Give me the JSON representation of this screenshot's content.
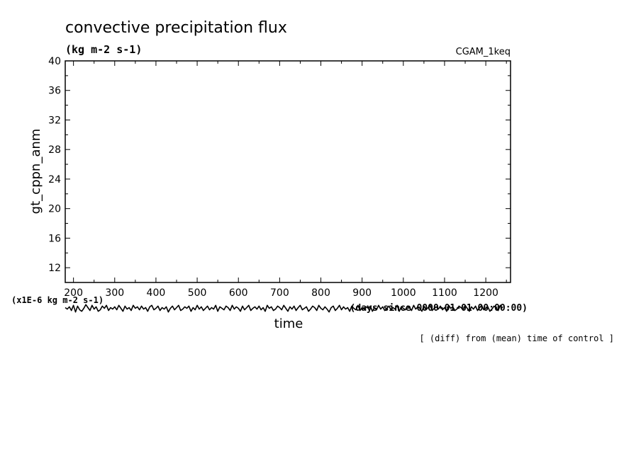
{
  "chart_data": {
    "type": "line",
    "title": "convective precipitation flux",
    "units": "(kg m-2 s-1)",
    "run_label": "CGAM_1keq",
    "ylabel": "gt_cppn_anm",
    "y_scale_note": "(x1E-6 kg m-2 s-1)",
    "xlabel": "time",
    "x_units": "(days since 0000-01-01 00:00:00)",
    "annotation": "[ (diff) from (mean) time of control ]",
    "xlim": [
      180,
      1260
    ],
    "ylim": [
      10,
      40
    ],
    "x_ticks": [
      200,
      300,
      400,
      500,
      600,
      700,
      800,
      900,
      1000,
      1100,
      1200
    ],
    "y_ticks": [
      12,
      16,
      20,
      24,
      28,
      32,
      36,
      40
    ],
    "series": [
      {
        "x_start": 180,
        "x_step": 5,
        "values": [
          6.6,
          6.4,
          6.7,
          6.2,
          6.9,
          6.0,
          6.8,
          6.3,
          6.1,
          6.5,
          7.0,
          6.6,
          6.2,
          6.9,
          6.4,
          6.7,
          6.1,
          6.3,
          6.8,
          6.5,
          6.9,
          6.2,
          6.6,
          6.4,
          6.7,
          6.3,
          6.9,
          6.5,
          6.1,
          6.8,
          6.4,
          6.6,
          6.2,
          6.9,
          6.5,
          6.7,
          6.3,
          6.8,
          6.4,
          6.6,
          6.1,
          6.7,
          6.9,
          6.3,
          6.5,
          6.8,
          6.2,
          6.6,
          6.4,
          6.7,
          6.0,
          6.5,
          6.8,
          6.3,
          6.6,
          6.9,
          6.2,
          6.4,
          6.7,
          6.5,
          6.8,
          6.1,
          6.6,
          6.3,
          6.9,
          6.4,
          6.7,
          6.2,
          6.5,
          6.8,
          6.3,
          6.6,
          6.4,
          6.9,
          6.1,
          6.7,
          6.5,
          6.3,
          6.8,
          6.6,
          6.2,
          6.9,
          6.4,
          6.7,
          6.5,
          6.1,
          6.8,
          6.3,
          6.6,
          6.9,
          6.2,
          6.5,
          6.7,
          6.4,
          6.8,
          6.3,
          6.6,
          6.1,
          6.9,
          6.5,
          6.7,
          6.2,
          6.4,
          6.8,
          6.6,
          6.3,
          6.9,
          6.5,
          6.1,
          6.7,
          6.4,
          6.8,
          6.2,
          6.6,
          6.9,
          6.3,
          6.5,
          6.7,
          6.1,
          6.4,
          6.8,
          6.6,
          6.2,
          6.9,
          6.5,
          6.3,
          6.7,
          6.4,
          6.0,
          6.6,
          6.8,
          6.2,
          6.5,
          6.9,
          6.3,
          6.7,
          6.4,
          6.6,
          6.1,
          6.8,
          6.5,
          6.3,
          6.9,
          6.2,
          6.6,
          6.4,
          6.7,
          6.5,
          6.8,
          6.1,
          6.6,
          6.3,
          6.9,
          6.4,
          6.7,
          6.2,
          6.5,
          6.8,
          6.3,
          6.6,
          6.4,
          6.9,
          6.1,
          6.7,
          6.5,
          6.3,
          6.8,
          6.6,
          6.2,
          6.9,
          6.4,
          6.7,
          6.5,
          6.1,
          6.8,
          6.3,
          6.6,
          6.9,
          6.2,
          6.5,
          6.7,
          6.4,
          6.8,
          6.3,
          6.6,
          6.1,
          6.9,
          6.5,
          6.7,
          6.2,
          6.4,
          6.8,
          6.6,
          6.3,
          6.9,
          6.5,
          6.1,
          6.7,
          6.4,
          6.8,
          6.2,
          6.6,
          6.9,
          6.3,
          6.5,
          6.7,
          6.1,
          6.4,
          6.8,
          6.6,
          6.2,
          6.9,
          6.5
        ]
      }
    ]
  }
}
